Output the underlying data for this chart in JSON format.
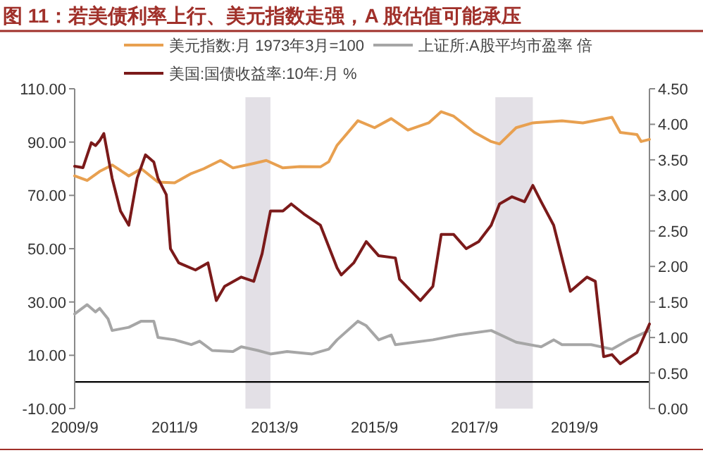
{
  "chart_data": {
    "type": "line",
    "title": "图 11：若美债利率上行、美元指数走强，A 股估值可能承压",
    "legend": "top",
    "xlim": [
      "2009-09",
      "2021-03"
    ],
    "xticks": [
      {
        "value": "2009-09",
        "label": "2009/9"
      },
      {
        "value": "2011-09",
        "label": "2011/9"
      },
      {
        "value": "2013-09",
        "label": "2013/9"
      },
      {
        "value": "2015-09",
        "label": "2015/9"
      },
      {
        "value": "2017-09",
        "label": "2017/9"
      },
      {
        "value": "2019-09",
        "label": "2019/9"
      }
    ],
    "ylim": [
      -10,
      110
    ],
    "yticks": [
      {
        "value": -10,
        "label": "-10.00"
      },
      {
        "value": 10,
        "label": "10.00"
      },
      {
        "value": 30,
        "label": "30.00"
      },
      {
        "value": 50,
        "label": "50.00"
      },
      {
        "value": 70,
        "label": "70.00"
      },
      {
        "value": 90,
        "label": "90.00"
      },
      {
        "value": 110,
        "label": "110.00"
      }
    ],
    "y2lim": [
      0,
      4.5
    ],
    "y2ticks": [
      {
        "value": 0,
        "label": "0.00"
      },
      {
        "value": 0.5,
        "label": "0.50"
      },
      {
        "value": 1,
        "label": "1.00"
      },
      {
        "value": 1.5,
        "label": "1.50"
      },
      {
        "value": 2,
        "label": "2.00"
      },
      {
        "value": 2.5,
        "label": "2.50"
      },
      {
        "value": 3,
        "label": "3.00"
      },
      {
        "value": 3.5,
        "label": "3.50"
      },
      {
        "value": 4,
        "label": "4.00"
      },
      {
        "value": 4.5,
        "label": "4.50"
      }
    ],
    "bands": [
      {
        "axis": "x",
        "from": "2013-02",
        "to": "2013-08",
        "color": "#e3e0e6"
      },
      {
        "axis": "x",
        "from": "2018-02",
        "to": "2018-11",
        "color": "#e3e0e6"
      }
    ],
    "series": [
      {
        "name": "美元指数:月 1973年3月=100",
        "color": "#e8a050",
        "x": [
          "2009-09",
          "2009-12",
          "2010-03",
          "2010-06",
          "2010-10",
          "2011-01",
          "2011-05",
          "2011-09",
          "2012-01",
          "2012-04",
          "2012-08",
          "2012-11",
          "2013-04",
          "2013-07",
          "2013-11",
          "2014-03",
          "2014-08",
          "2014-10",
          "2014-12",
          "2015-05",
          "2015-09",
          "2016-01",
          "2016-05",
          "2016-10",
          "2017-01",
          "2017-04",
          "2017-09",
          "2018-01",
          "2018-03",
          "2018-07",
          "2018-11",
          "2019-06",
          "2019-11",
          "2020-06",
          "2020-08",
          "2020-12",
          "2021-01",
          "2021-03"
        ],
        "values": [
          77.3,
          75.6,
          79,
          81.4,
          77.3,
          80,
          75,
          74.7,
          78.2,
          80,
          83.1,
          80.3,
          82,
          83.1,
          80.3,
          80.8,
          80.7,
          82.6,
          88.8,
          98,
          95.4,
          98.8,
          94.5,
          97.2,
          101.4,
          99.7,
          93.6,
          90.2,
          89.3,
          95.4,
          97.2,
          98,
          97.2,
          99.3,
          93.6,
          92.8,
          90.2,
          91
        ]
      },
      {
        "name": "上证所:A股平均市盈率 倍",
        "color": "#a6a6a6",
        "x": [
          "2009-09",
          "2009-12",
          "2010-02",
          "2010-03",
          "2010-05",
          "2010-06",
          "2010-10",
          "2011-01",
          "2011-04",
          "2011-05",
          "2011-09",
          "2012-01",
          "2012-03",
          "2012-06",
          "2012-11",
          "2013-01",
          "2013-05",
          "2013-08",
          "2013-12",
          "2014-06",
          "2014-10",
          "2014-12",
          "2015-05",
          "2015-07",
          "2015-10",
          "2016-01",
          "2016-02",
          "2016-11",
          "2017-05",
          "2018-01",
          "2018-07",
          "2019-01",
          "2019-04",
          "2019-06",
          "2020-01",
          "2020-06",
          "2020-10",
          "2021-03"
        ],
        "values": [
          25.5,
          29,
          26.3,
          27.6,
          23.7,
          19.3,
          20.5,
          22.8,
          22.8,
          16.7,
          15.8,
          14,
          15.3,
          11.8,
          11.4,
          13.2,
          11.8,
          10.5,
          11.4,
          10.5,
          12.3,
          15.8,
          22.8,
          21.1,
          15.8,
          17.6,
          14,
          15.8,
          17.6,
          19.3,
          14.9,
          13.2,
          15.8,
          14,
          14,
          12.3,
          15.8,
          19.3
        ]
      },
      {
        "name": "美国:国债收益率:10年:月 %",
        "color": "#7b1a1a",
        "axis": "y2",
        "x": [
          "2009-09",
          "2009-11",
          "2010-01",
          "2010-02",
          "2010-03",
          "2010-04",
          "2010-06",
          "2010-08",
          "2010-10",
          "2010-12",
          "2011-02",
          "2011-04",
          "2011-05",
          "2011-07",
          "2011-08",
          "2011-10",
          "2012-02",
          "2012-05",
          "2012-07",
          "2012-09",
          "2013-01",
          "2013-04",
          "2013-06",
          "2013-08",
          "2013-11",
          "2014-01",
          "2014-04",
          "2014-08",
          "2014-12",
          "2015-01",
          "2015-04",
          "2015-07",
          "2015-10",
          "2016-02",
          "2016-03",
          "2016-08",
          "2016-11",
          "2017-01",
          "2017-04",
          "2017-07",
          "2017-10",
          "2018-01",
          "2018-03",
          "2018-06",
          "2018-09",
          "2018-11",
          "2019-01",
          "2019-04",
          "2019-08",
          "2019-12",
          "2020-02",
          "2020-04",
          "2020-06",
          "2020-08",
          "2020-12",
          "2021-03"
        ],
        "values": [
          3.41,
          3.39,
          3.74,
          3.7,
          3.77,
          3.87,
          3.24,
          2.78,
          2.58,
          3.24,
          3.57,
          3.47,
          3.24,
          3.01,
          2.25,
          2.05,
          1.95,
          2.05,
          1.52,
          1.72,
          1.85,
          1.79,
          2.18,
          2.78,
          2.78,
          2.88,
          2.74,
          2.58,
          1.98,
          1.88,
          2.05,
          2.35,
          2.15,
          2.12,
          1.82,
          1.52,
          1.72,
          2.45,
          2.45,
          2.25,
          2.35,
          2.58,
          2.88,
          2.98,
          2.91,
          3.14,
          2.91,
          2.58,
          1.65,
          1.85,
          1.79,
          0.73,
          0.76,
          0.63,
          0.79,
          1.19
        ]
      }
    ]
  }
}
